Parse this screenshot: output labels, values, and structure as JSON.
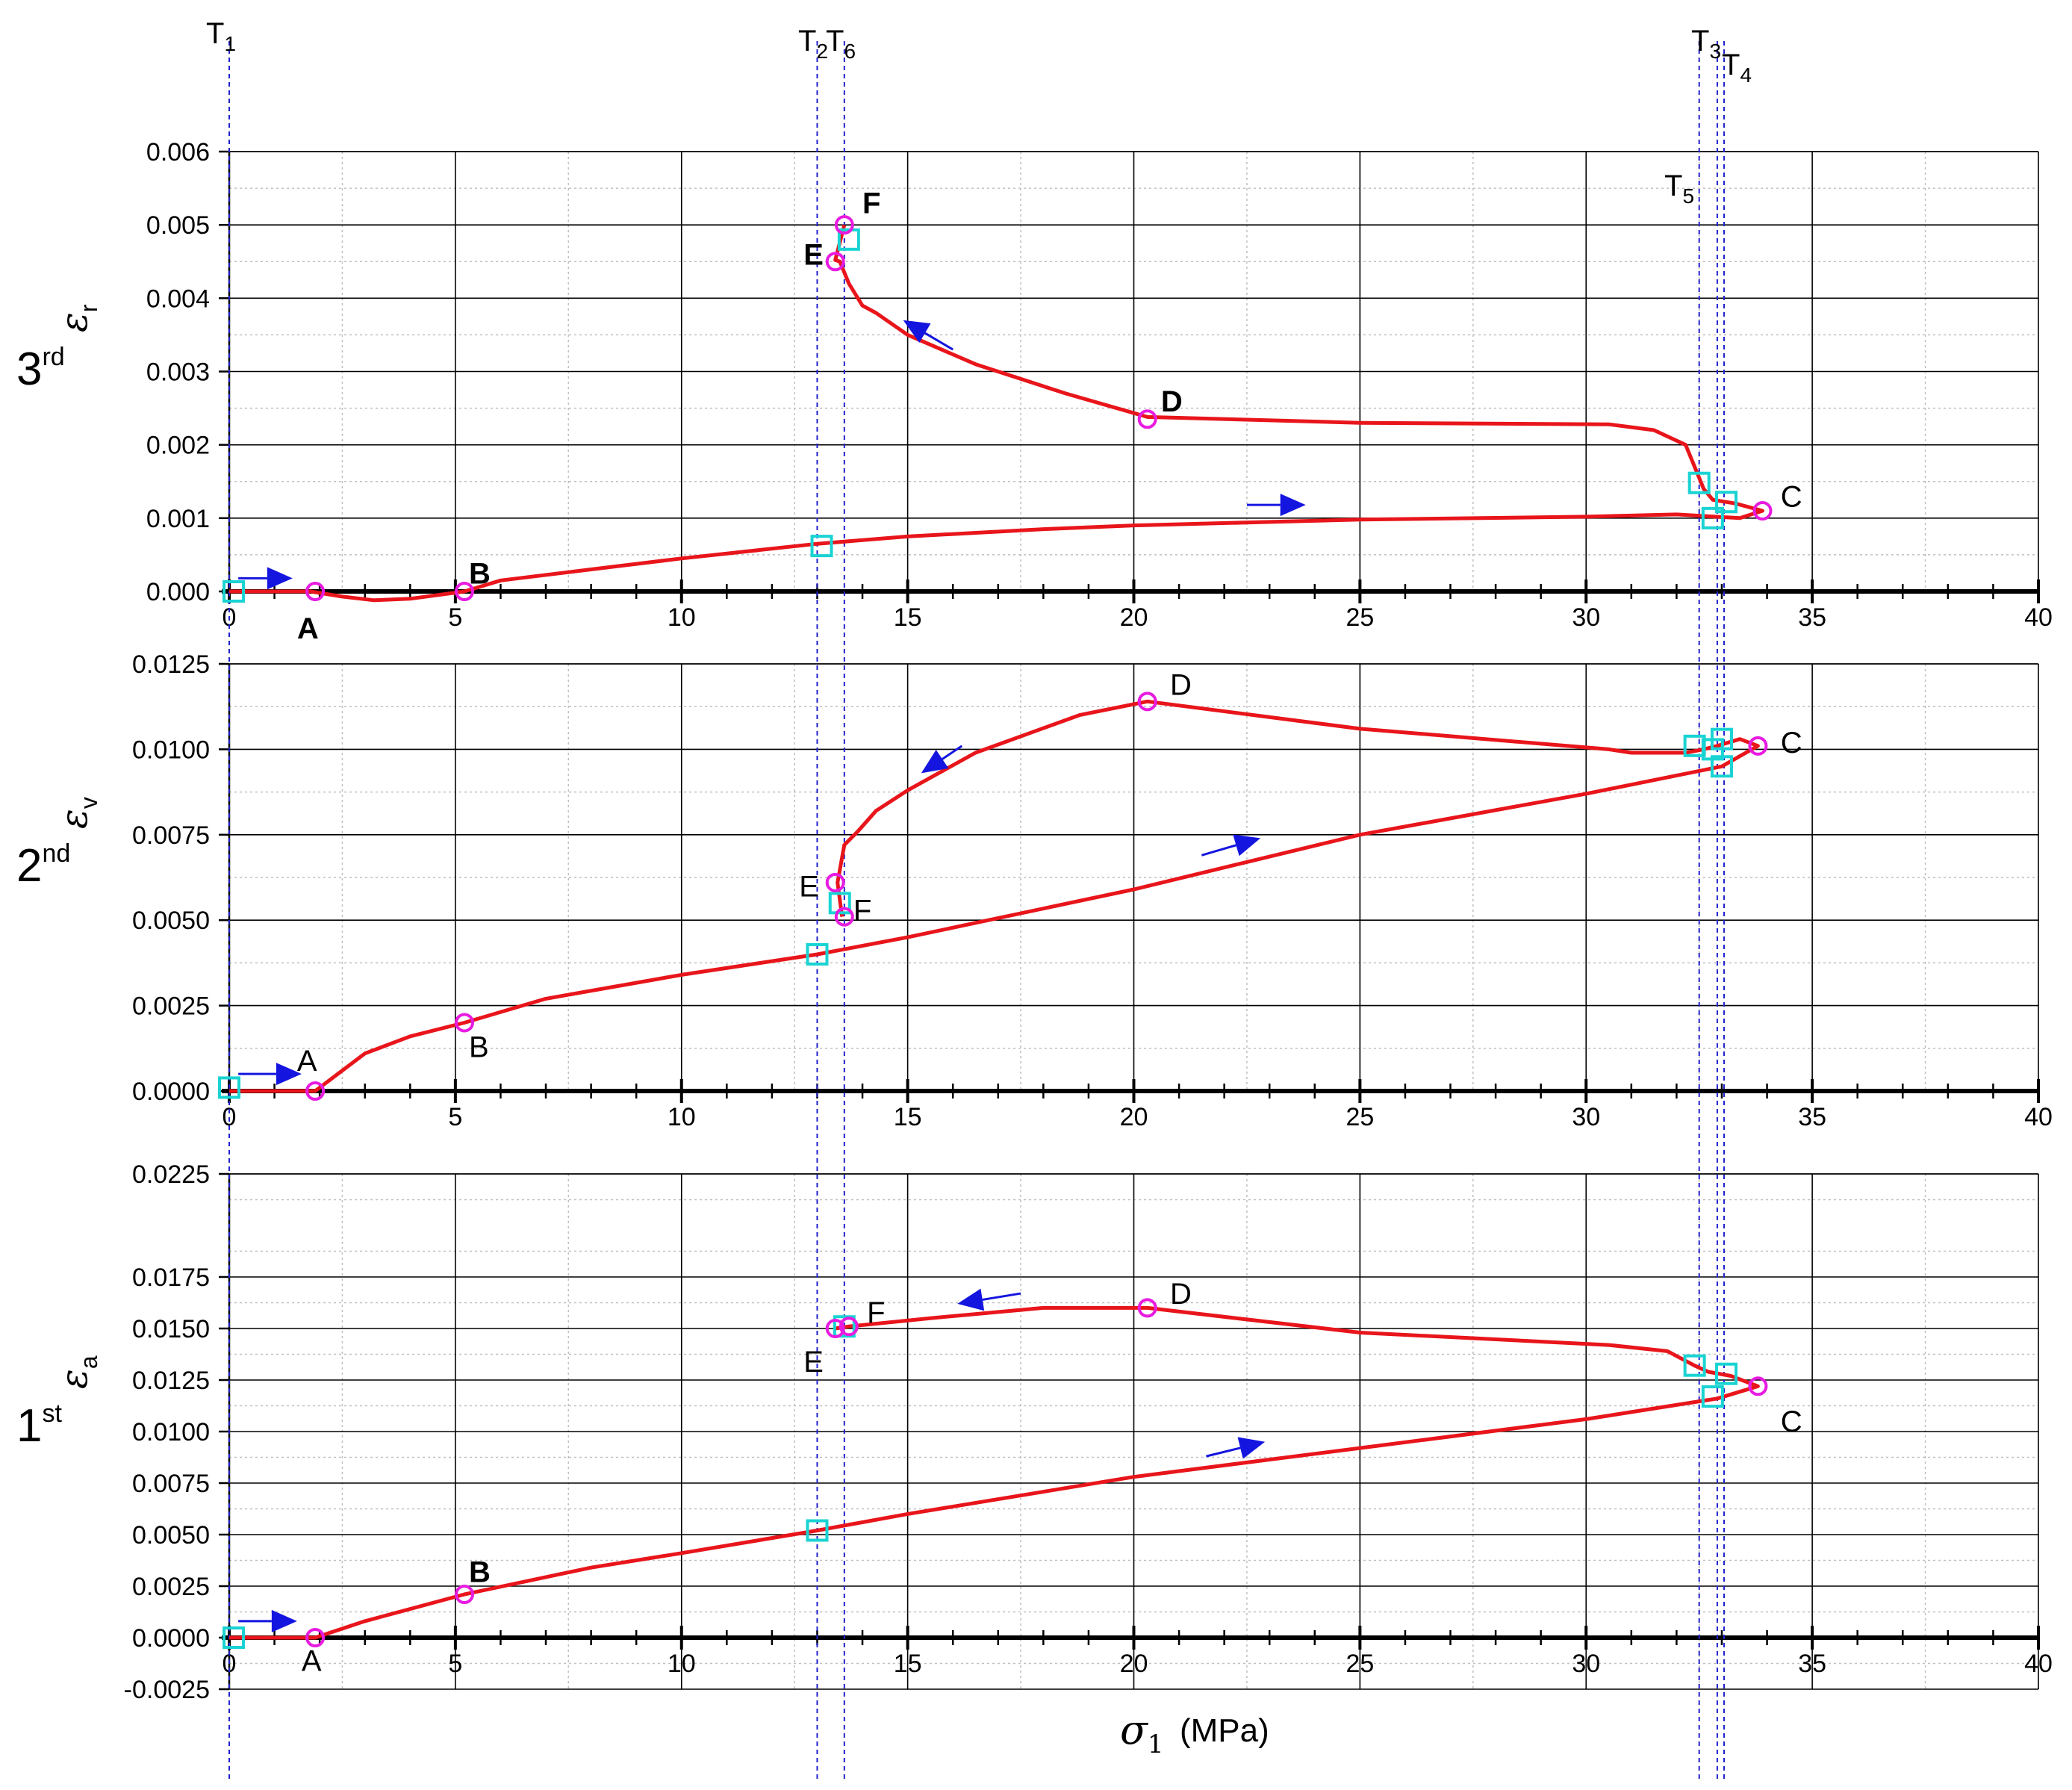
{
  "figure": {
    "x_axis_title": "(MPa)",
    "x_symbol": "σ",
    "x_subscript": "1"
  },
  "vertical_lines": [
    {
      "name": "T",
      "sub": "1",
      "x": 0.0
    },
    {
      "name": "T",
      "sub": "2",
      "x": 13.0
    },
    {
      "name": "T",
      "sub": "6",
      "x": 13.6
    },
    {
      "name": "T",
      "sub": "5",
      "x": 32.5
    },
    {
      "name": "T",
      "sub": "3",
      "x": 32.9
    },
    {
      "name": "T",
      "sub": "4",
      "x": 33.05
    }
  ],
  "colors": {
    "curve": "#e8151b",
    "point": "#e81be0",
    "square": "#1ad3d3",
    "arrow": "#1515e0",
    "vline": "#2222cc"
  },
  "chart_data": [
    {
      "type": "line",
      "panel": "3rd",
      "ylabel_symbol": "ε",
      "ylabel_sub": "r",
      "xlim": [
        0,
        40
      ],
      "ylim": [
        0,
        0.006
      ],
      "xticks": [
        0,
        5,
        10,
        15,
        20,
        25,
        30,
        35,
        40
      ],
      "xtick_labels": [
        "0",
        "5",
        "10",
        "15",
        "20",
        "25",
        "30",
        "35",
        "40"
      ],
      "yticks": [
        0.0,
        0.001,
        0.002,
        0.003,
        0.004,
        0.005,
        0.006
      ],
      "ytick_labels": [
        "0.000",
        "0.001",
        "0.002",
        "0.003",
        "0.004",
        "0.005",
        "0.006"
      ],
      "series": [
        {
          "name": "ε_r",
          "x": [
            0,
            1.8,
            2.5,
            3.2,
            4,
            5.2,
            6,
            8,
            10,
            13,
            15,
            18,
            20,
            25,
            30,
            32,
            33.4,
            33.9,
            33.3,
            32.8,
            32.6,
            32.4,
            32.2,
            31.5,
            30.5,
            25,
            20.3,
            18.5,
            16.5,
            15,
            14.3,
            14,
            13.7,
            13.5,
            13.4,
            13.6
          ],
          "y": [
            0,
            0,
            -7e-05,
            -0.00012,
            -0.0001,
            0,
            0.00015,
            0.0003,
            0.00045,
            0.00065,
            0.00075,
            0.00085,
            0.0009,
            0.00098,
            0.00102,
            0.00105,
            0.001,
            0.0011,
            0.0012,
            0.00125,
            0.0014,
            0.0017,
            0.002,
            0.0022,
            0.00228,
            0.0023,
            0.00238,
            0.0027,
            0.0031,
            0.0035,
            0.0038,
            0.0039,
            0.0042,
            0.0045,
            0.00452,
            0.005
          ]
        }
      ],
      "points": [
        {
          "label": "A",
          "x": 1.9,
          "y": 0.0,
          "bold": true,
          "lx": 1.5,
          "ly": -0.0005
        },
        {
          "label": "B",
          "x": 5.2,
          "y": 0.0,
          "bold": true,
          "lx": 5.3,
          "ly": 0.00025
        },
        {
          "label": "C",
          "x": 33.9,
          "y": 0.0011,
          "bold": false,
          "lx": 34.3,
          "ly": 0.0013
        },
        {
          "label": "D",
          "x": 20.3,
          "y": 0.00235,
          "bold": true,
          "lx": 20.6,
          "ly": 0.0026
        },
        {
          "label": "E",
          "x": 13.4,
          "y": 0.0045,
          "bold": true,
          "lx": 12.7,
          "ly": 0.0046
        },
        {
          "label": "F",
          "x": 13.6,
          "y": 0.005,
          "bold": true,
          "lx": 14.0,
          "ly": 0.0053
        }
      ],
      "squares": [
        [
          0.1,
          0.0
        ],
        [
          13.1,
          0.00062
        ],
        [
          13.7,
          0.0048
        ],
        [
          32.5,
          0.00148
        ],
        [
          32.8,
          0.001
        ],
        [
          33.1,
          0.00122
        ]
      ],
      "arrows": [
        [
          0.2,
          0.00018,
          1.4,
          0.00018
        ],
        [
          22.5,
          0.00118,
          23.8,
          0.00118
        ],
        [
          16.0,
          0.0033,
          14.9,
          0.0037
        ]
      ]
    },
    {
      "type": "line",
      "panel": "2nd",
      "ylabel_symbol": "ε",
      "ylabel_sub": "v",
      "xlim": [
        0,
        40
      ],
      "ylim": [
        0,
        0.0125
      ],
      "xticks": [
        0,
        5,
        10,
        15,
        20,
        25,
        30,
        35,
        40
      ],
      "xtick_labels": [
        "0",
        "5",
        "10",
        "15",
        "20",
        "25",
        "30",
        "35",
        "40"
      ],
      "yticks": [
        0.0,
        0.0025,
        0.005,
        0.0075,
        0.01,
        0.0125
      ],
      "ytick_labels": [
        "0.0000",
        "0.0025",
        "0.0050",
        "0.0075",
        "0.0100",
        "0.0125"
      ],
      "series": [
        {
          "name": "ε_v",
          "x": [
            0,
            1.9,
            2.3,
            3,
            4,
            5.2,
            7,
            10,
            13,
            15,
            20,
            25,
            30,
            33,
            33.8,
            33.4,
            32.9,
            32.6,
            32.2,
            31,
            30.5,
            25,
            20.3,
            18.8,
            16.5,
            15,
            14.3,
            13.9,
            13.6,
            13.45,
            13.55
          ],
          "y": [
            0,
            0,
            0.0004,
            0.0011,
            0.0016,
            0.002,
            0.0027,
            0.0034,
            0.004,
            0.0045,
            0.0059,
            0.0075,
            0.0087,
            0.0095,
            0.0101,
            0.0103,
            0.0101,
            0.01,
            0.0099,
            0.0099,
            0.01,
            0.0106,
            0.0114,
            0.011,
            0.0099,
            0.0088,
            0.0082,
            0.0076,
            0.0072,
            0.0061,
            0.0051
          ]
        }
      ],
      "points": [
        {
          "label": "A",
          "x": 1.9,
          "y": 0.0,
          "bold": false,
          "lx": 1.5,
          "ly": 0.0009
        },
        {
          "label": "B",
          "x": 5.2,
          "y": 0.002,
          "bold": false,
          "lx": 5.3,
          "ly": 0.0013
        },
        {
          "label": "C",
          "x": 33.8,
          "y": 0.0101,
          "bold": false,
          "lx": 34.3,
          "ly": 0.0102
        },
        {
          "label": "D",
          "x": 20.3,
          "y": 0.0114,
          "bold": false,
          "lx": 20.8,
          "ly": 0.0119
        },
        {
          "label": "E",
          "x": 13.4,
          "y": 0.0061,
          "bold": false,
          "lx": 12.6,
          "ly": 0.006
        },
        {
          "label": "F",
          "x": 13.6,
          "y": 0.0051,
          "bold": false,
          "lx": 13.8,
          "ly": 0.0053
        }
      ],
      "squares": [
        [
          0.0,
          0.0001
        ],
        [
          13.0,
          0.004
        ],
        [
          13.5,
          0.0055
        ],
        [
          32.4,
          0.0101
        ],
        [
          32.8,
          0.01
        ],
        [
          33.0,
          0.0103
        ],
        [
          33.0,
          0.0095
        ]
      ],
      "arrows": [
        [
          0.2,
          0.0005,
          1.6,
          0.0005
        ],
        [
          21.5,
          0.0069,
          22.8,
          0.0074
        ],
        [
          16.2,
          0.0101,
          15.3,
          0.0093
        ]
      ]
    },
    {
      "type": "line",
      "panel": "1st",
      "ylabel_symbol": "ε",
      "ylabel_sub": "a",
      "xlim": [
        0,
        40
      ],
      "ylim": [
        -0.0025,
        0.0225
      ],
      "xticks": [
        0,
        5,
        10,
        15,
        20,
        25,
        30,
        35,
        40
      ],
      "xtick_labels": [
        "0",
        "5",
        "10",
        "15",
        "20",
        "25",
        "30",
        "35",
        "40"
      ],
      "yticks": [
        -0.0025,
        0.0,
        0.0025,
        0.005,
        0.0075,
        0.01,
        0.0125,
        0.015,
        0.0175,
        0.0225
      ],
      "ytick_labels": [
        "-0.0025",
        "0.0000",
        "0.0025",
        "0.0050",
        "0.0075",
        "0.0100",
        "0.0125",
        "0.0150",
        "0.0175",
        "0.0225"
      ],
      "series": [
        {
          "name": "ε_a",
          "x": [
            0,
            1.9,
            3,
            5.2,
            8,
            10,
            13,
            15,
            20,
            25,
            30,
            32.9,
            33.8,
            33.2,
            32.7,
            32.4,
            31.8,
            30.5,
            25,
            20.3,
            18,
            15.5,
            13.7,
            13.4
          ],
          "y": [
            0,
            0,
            0.0008,
            0.0021,
            0.0034,
            0.0041,
            0.0052,
            0.006,
            0.0078,
            0.0092,
            0.0106,
            0.0116,
            0.0122,
            0.0127,
            0.0129,
            0.0132,
            0.0139,
            0.0142,
            0.0148,
            0.016,
            0.016,
            0.0155,
            0.0151,
            0.015
          ]
        }
      ],
      "points": [
        {
          "label": "A",
          "x": 1.9,
          "y": 0.0,
          "bold": false,
          "lx": 1.6,
          "ly": -0.0011
        },
        {
          "label": "B",
          "x": 5.2,
          "y": 0.0021,
          "bold": true,
          "lx": 5.3,
          "ly": 0.0032
        },
        {
          "label": "C",
          "x": 33.8,
          "y": 0.0122,
          "bold": false,
          "lx": 34.3,
          "ly": 0.0105
        },
        {
          "label": "D",
          "x": 20.3,
          "y": 0.016,
          "bold": false,
          "lx": 20.8,
          "ly": 0.0167
        },
        {
          "label": "E",
          "x": 13.4,
          "y": 0.015,
          "bold": false,
          "lx": 12.7,
          "ly": 0.0134
        },
        {
          "label": "F",
          "x": 13.7,
          "y": 0.0151,
          "bold": false,
          "lx": 14.1,
          "ly": 0.0158
        }
      ],
      "squares": [
        [
          0.1,
          0.0
        ],
        [
          13.0,
          0.0052
        ],
        [
          13.6,
          0.0151
        ],
        [
          32.4,
          0.0132
        ],
        [
          32.8,
          0.0117
        ],
        [
          33.1,
          0.0128
        ]
      ],
      "arrows": [
        [
          0.2,
          0.0008,
          1.5,
          0.0008
        ],
        [
          21.6,
          0.0088,
          22.9,
          0.0095
        ],
        [
          17.5,
          0.0167,
          16.1,
          0.0162
        ]
      ]
    }
  ]
}
